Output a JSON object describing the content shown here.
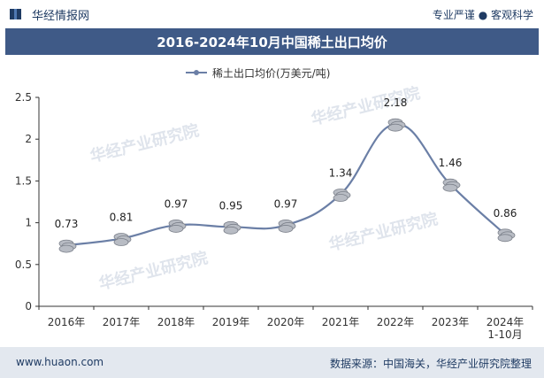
{
  "header": {
    "brand": "华经情报网",
    "slogan": "专业严谨 ● 客观科学"
  },
  "footer": {
    "url": "www.huaon.com",
    "source": "数据来源：中国海关，华经产业研究院整理"
  },
  "watermark": "华经产业研究院",
  "colors": {
    "title_bar": "#3f5a87",
    "line": "#6b7fa6",
    "coin": "#b8bcc4",
    "footer": "#e3e8ef"
  },
  "chart_data": {
    "type": "line",
    "title": "2016-2024年10月中国稀土出口均价",
    "legend": "稀土出口均价(万美元/吨)",
    "legend_position": "top-center",
    "categories": [
      "2016年",
      "2017年",
      "2018年",
      "2019年",
      "2020年",
      "2021年",
      "2022年",
      "2023年",
      "2024年\n1-10月"
    ],
    "series": [
      {
        "name": "稀土出口均价(万美元/吨)",
        "values": [
          0.73,
          0.81,
          0.97,
          0.95,
          0.97,
          1.34,
          2.18,
          1.46,
          0.86
        ]
      }
    ],
    "data_labels": [
      "0.73",
      "0.81",
      "0.97",
      "0.95",
      "0.97",
      "1.34",
      "2.18",
      "1.46",
      "0.86"
    ],
    "y_ticks": [
      "0",
      "0.5",
      "1",
      "1.5",
      "2",
      "2.5"
    ],
    "ylim": [
      0,
      2.5
    ],
    "grid": false
  }
}
